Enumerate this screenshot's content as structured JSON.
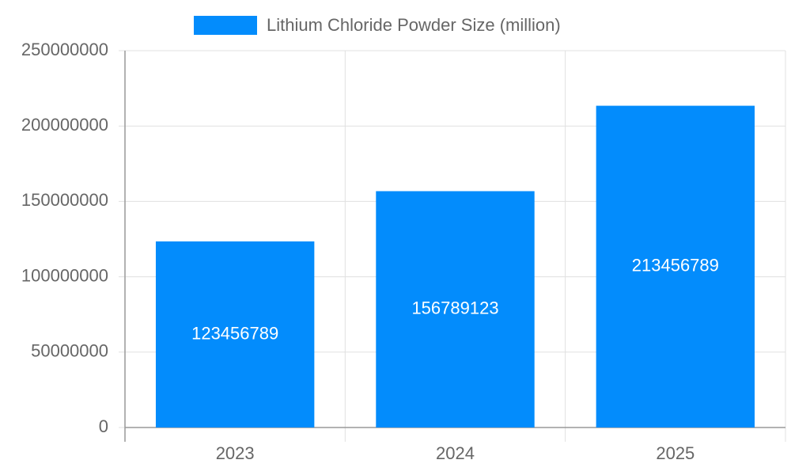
{
  "chart_data": {
    "type": "bar",
    "categories": [
      "2023",
      "2024",
      "2025"
    ],
    "series": [
      {
        "name": "Lithium Chloride Powder Size (million)",
        "color": "#038cfc",
        "values": [
          123456789,
          156789123,
          213456789
        ]
      }
    ],
    "ylim": [
      0,
      250000000
    ],
    "yticks": [
      0,
      50000000,
      100000000,
      150000000,
      200000000,
      250000000
    ],
    "grid": true,
    "legend": "top"
  }
}
